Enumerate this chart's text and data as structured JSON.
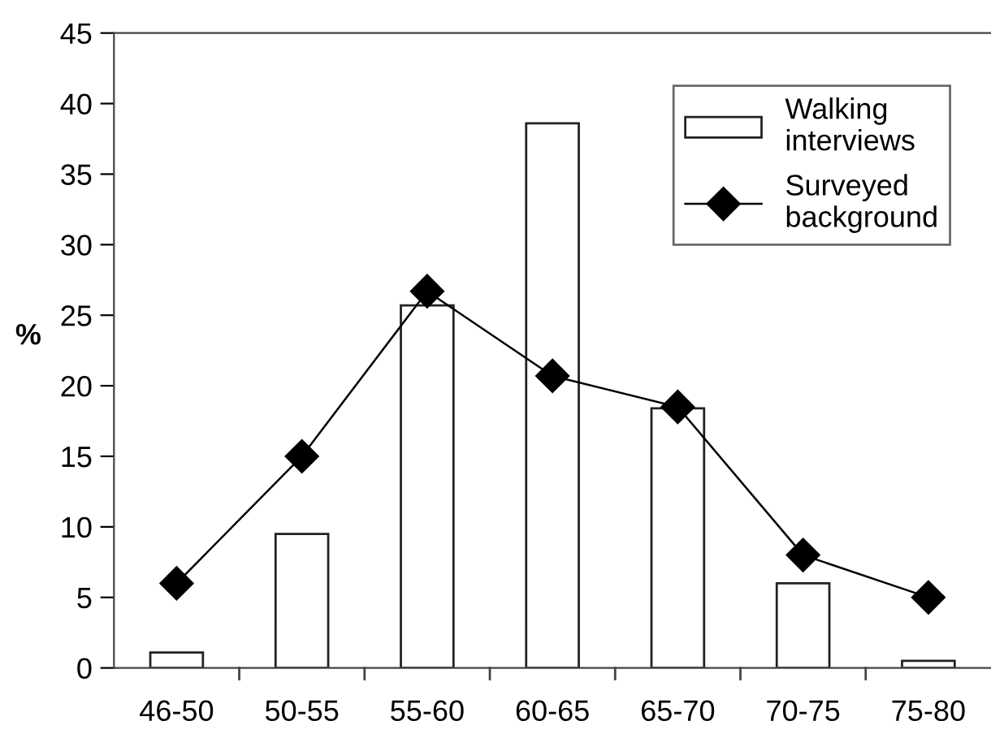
{
  "chart_data": {
    "type": "bar",
    "ylabel": "%",
    "categories": [
      "46-50",
      "50-55",
      "55-60",
      "60-65",
      "65-70",
      "70-75",
      "75-80"
    ],
    "series": [
      {
        "name": "Walking\ninterviews",
        "color": "#ffffff",
        "values": [
          1.1,
          9.5,
          25.7,
          38.6,
          18.4,
          6.0,
          0.5
        ]
      },
      {
        "name": "Surveyed\nbackground",
        "type": "line",
        "color": "#000000",
        "marker": "diamond",
        "values": [
          6.0,
          15.0,
          26.7,
          20.7,
          18.5,
          8.0,
          5.0
        ]
      }
    ],
    "ylim": [
      0,
      45
    ],
    "yticks": [
      0,
      5,
      10,
      15,
      20,
      25,
      30,
      35,
      40,
      45
    ],
    "grid": false,
    "legend": "top right"
  }
}
